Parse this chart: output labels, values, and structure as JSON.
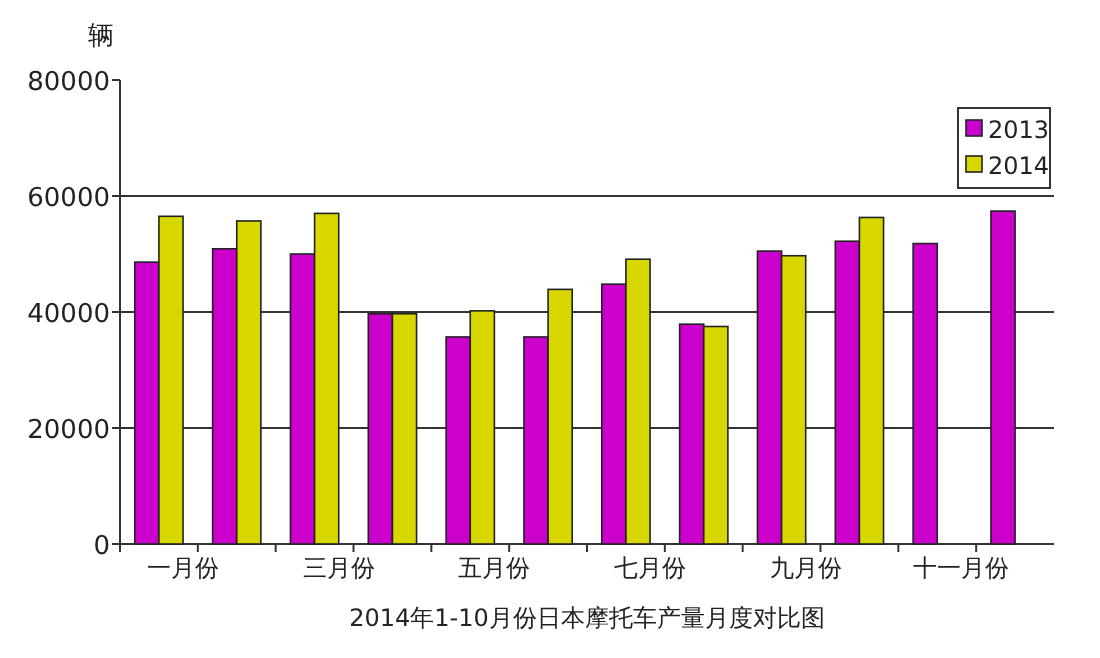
{
  "chart_data": {
    "type": "bar",
    "title": "2014年1-10月份日本摩托车产量月度对比图",
    "ylabel": "辆",
    "categories": [
      "一月份",
      null,
      "三月份",
      null,
      "五月份",
      null,
      "七月份",
      null,
      "九月份",
      null,
      "十一月份",
      null
    ],
    "series": [
      {
        "name": "2013",
        "color": "#cc00cc",
        "values": [
          48600,
          50900,
          50000,
          39700,
          35700,
          35700,
          44800,
          37900,
          50500,
          52200,
          51800,
          57400
        ]
      },
      {
        "name": "2014",
        "color": "#d8d800",
        "values": [
          56500,
          55700,
          57000,
          39700,
          40200,
          43900,
          49100,
          37500,
          49700,
          56300,
          null,
          null
        ]
      }
    ],
    "ylim": [
      0,
      80000
    ],
    "yticks": [
      0,
      20000,
      40000,
      60000,
      80000
    ],
    "grid": "y",
    "legend": "top right"
  }
}
